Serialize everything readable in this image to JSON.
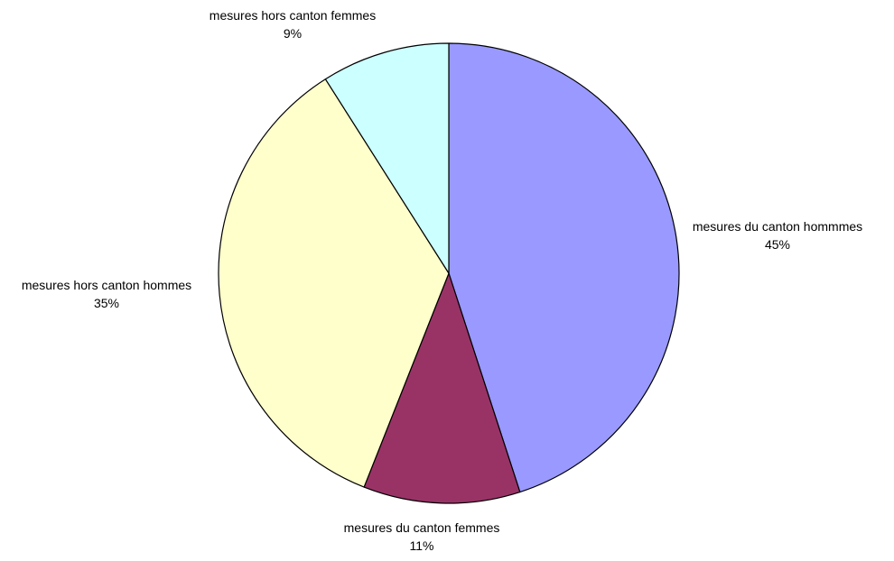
{
  "chart_data": {
    "type": "pie",
    "title": "",
    "start_angle_deg": 0,
    "direction": "clockwise",
    "slices": [
      {
        "label": "mesures du canton hommmes",
        "value": 45,
        "value_label": "45%",
        "color": "#9999FF"
      },
      {
        "label": "mesures du canton femmes",
        "value": 11,
        "value_label": "11%",
        "color": "#993366"
      },
      {
        "label": "mesures hors canton hommes",
        "value": 35,
        "value_label": "35%",
        "color": "#FFFFCC"
      },
      {
        "label": "mesures hors canton femmes",
        "value": 9,
        "value_label": "9%",
        "color": "#CCFFFF"
      }
    ]
  }
}
